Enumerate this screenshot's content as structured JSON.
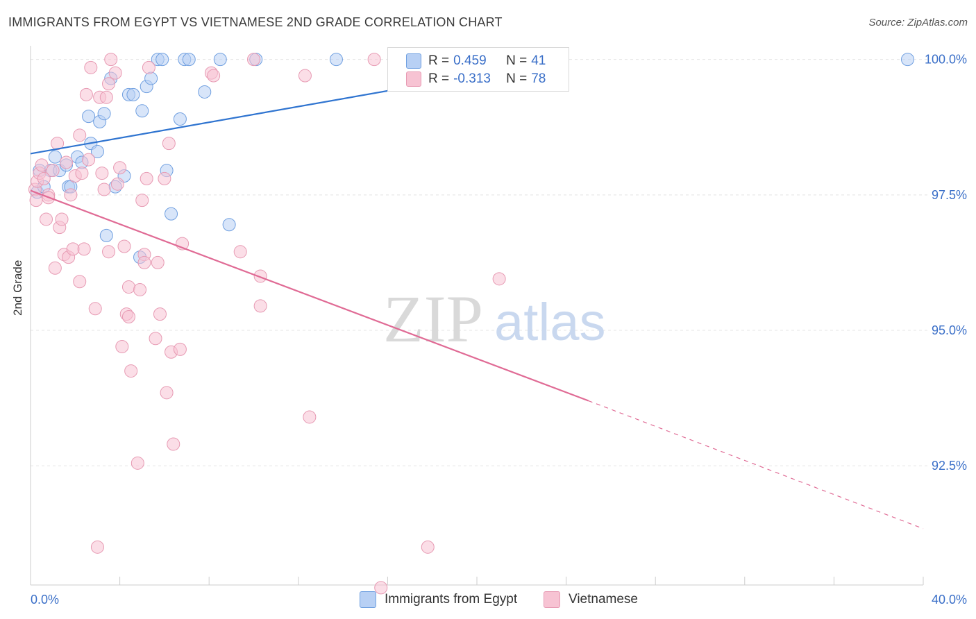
{
  "header": {
    "title": "IMMIGRANTS FROM EGYPT VS VIETNAMESE 2ND GRADE CORRELATION CHART",
    "source": "Source: ZipAtlas.com"
  },
  "colors": {
    "blue_fill": "#b8d0f4",
    "blue_stroke": "#6f9fe0",
    "blue_line": "#2f74d0",
    "pink_fill": "#f7c3d3",
    "pink_stroke": "#e79ab3",
    "pink_line": "#e06b95",
    "tick_label": "#3a6fc8"
  },
  "legend": {
    "rows": [
      {
        "r_label": "R = ",
        "r_value": "0.459",
        "n_label": "N = ",
        "n_value": "41"
      },
      {
        "r_label": "R = ",
        "r_value": "-0.313",
        "n_label": "N = ",
        "n_value": "78"
      }
    ]
  },
  "bottom_legend": [
    "Immigrants from Egypt",
    "Vietnamese"
  ],
  "watermark": {
    "zip": "ZIP",
    "atlas": "atlas"
  },
  "chart_data": {
    "type": "scatter",
    "title": "IMMIGRANTS FROM EGYPT VS VIETNAMESE 2ND GRADE CORRELATION CHART",
    "xlabel": "",
    "ylabel": "2nd Grade",
    "xlim": [
      0,
      40
    ],
    "ylim": [
      90.3,
      100.2
    ],
    "x_tick_labels": [
      "0.0%",
      "40.0%"
    ],
    "y_ticks": [
      100.0,
      97.5,
      95.0,
      92.5
    ],
    "y_tick_labels": [
      "100.0%",
      "97.5%",
      "95.0%",
      "92.5%"
    ],
    "grid": true,
    "series": [
      {
        "name": "Immigrants from Egypt",
        "color": "#6f9fe0",
        "trend": {
          "x": [
            0,
            24
          ],
          "y": [
            98.26,
            100.0
          ],
          "dashed_to": null
        },
        "points": [
          [
            0.3,
            97.55
          ],
          [
            0.4,
            97.95
          ],
          [
            0.6,
            97.65
          ],
          [
            0.9,
            97.95
          ],
          [
            1.1,
            98.2
          ],
          [
            1.3,
            97.95
          ],
          [
            1.6,
            98.05
          ],
          [
            1.7,
            97.65
          ],
          [
            1.8,
            97.65
          ],
          [
            2.1,
            98.2
          ],
          [
            2.3,
            98.1
          ],
          [
            2.6,
            98.95
          ],
          [
            2.7,
            98.45
          ],
          [
            3.0,
            98.3
          ],
          [
            3.1,
            98.85
          ],
          [
            3.3,
            99.0
          ],
          [
            3.4,
            96.75
          ],
          [
            3.6,
            99.65
          ],
          [
            3.8,
            97.65
          ],
          [
            4.2,
            97.85
          ],
          [
            4.4,
            99.35
          ],
          [
            4.6,
            99.35
          ],
          [
            4.9,
            96.35
          ],
          [
            5.0,
            99.05
          ],
          [
            5.2,
            99.5
          ],
          [
            5.4,
            99.65
          ],
          [
            5.7,
            100.0
          ],
          [
            5.9,
            100.0
          ],
          [
            6.1,
            97.95
          ],
          [
            6.3,
            97.15
          ],
          [
            6.7,
            98.9
          ],
          [
            6.9,
            100.0
          ],
          [
            7.1,
            100.0
          ],
          [
            7.8,
            99.4
          ],
          [
            8.5,
            100.0
          ],
          [
            8.9,
            96.95
          ],
          [
            10.1,
            100.0
          ],
          [
            13.7,
            100.0
          ],
          [
            19.0,
            100.0
          ],
          [
            39.3,
            100.0
          ]
        ]
      },
      {
        "name": "Vietnamese",
        "color": "#e79ab3",
        "trend": {
          "x": [
            0,
            25
          ],
          "y": [
            97.58,
            93.7
          ],
          "dashed_to": [
            40,
            91.34
          ]
        },
        "points": [
          [
            0.2,
            97.6
          ],
          [
            0.25,
            97.4
          ],
          [
            0.3,
            97.75
          ],
          [
            0.4,
            97.9
          ],
          [
            0.5,
            98.05
          ],
          [
            0.6,
            97.8
          ],
          [
            0.7,
            97.05
          ],
          [
            0.8,
            97.5
          ],
          [
            0.8,
            97.45
          ],
          [
            1.0,
            97.95
          ],
          [
            1.1,
            96.15
          ],
          [
            1.2,
            98.45
          ],
          [
            1.3,
            96.9
          ],
          [
            1.4,
            97.05
          ],
          [
            1.5,
            96.4
          ],
          [
            1.6,
            98.1
          ],
          [
            1.7,
            96.35
          ],
          [
            1.8,
            97.5
          ],
          [
            1.9,
            96.5
          ],
          [
            2.0,
            97.85
          ],
          [
            2.2,
            98.6
          ],
          [
            2.2,
            95.9
          ],
          [
            2.3,
            97.9
          ],
          [
            2.4,
            96.5
          ],
          [
            2.5,
            99.35
          ],
          [
            2.6,
            98.15
          ],
          [
            2.7,
            99.85
          ],
          [
            2.9,
            95.4
          ],
          [
            3.0,
            91.0
          ],
          [
            3.1,
            99.3
          ],
          [
            3.2,
            97.9
          ],
          [
            3.3,
            97.6
          ],
          [
            3.4,
            99.3
          ],
          [
            3.5,
            99.55
          ],
          [
            3.5,
            96.45
          ],
          [
            3.6,
            100.0
          ],
          [
            3.8,
            99.75
          ],
          [
            3.9,
            97.7
          ],
          [
            4.0,
            98.0
          ],
          [
            4.1,
            94.7
          ],
          [
            4.2,
            96.55
          ],
          [
            4.3,
            95.3
          ],
          [
            4.4,
            95.25
          ],
          [
            4.4,
            95.8
          ],
          [
            4.5,
            94.25
          ],
          [
            4.8,
            92.55
          ],
          [
            4.9,
            95.75
          ],
          [
            5.0,
            97.4
          ],
          [
            5.1,
            96.4
          ],
          [
            5.1,
            96.25
          ],
          [
            5.2,
            97.8
          ],
          [
            5.3,
            99.85
          ],
          [
            5.6,
            94.85
          ],
          [
            5.7,
            96.25
          ],
          [
            5.8,
            95.3
          ],
          [
            6.0,
            97.8
          ],
          [
            6.1,
            93.85
          ],
          [
            6.2,
            98.45
          ],
          [
            6.3,
            94.6
          ],
          [
            6.4,
            92.9
          ],
          [
            6.7,
            94.65
          ],
          [
            6.8,
            96.6
          ],
          [
            8.1,
            99.75
          ],
          [
            8.2,
            99.7
          ],
          [
            9.4,
            96.45
          ],
          [
            10.0,
            100.0
          ],
          [
            10.3,
            96.0
          ],
          [
            10.3,
            95.45
          ],
          [
            12.3,
            99.7
          ],
          [
            12.5,
            93.4
          ],
          [
            15.7,
            90.25
          ],
          [
            15.4,
            100.0
          ],
          [
            17.8,
            91.0
          ],
          [
            21.0,
            95.95
          ]
        ]
      }
    ]
  }
}
